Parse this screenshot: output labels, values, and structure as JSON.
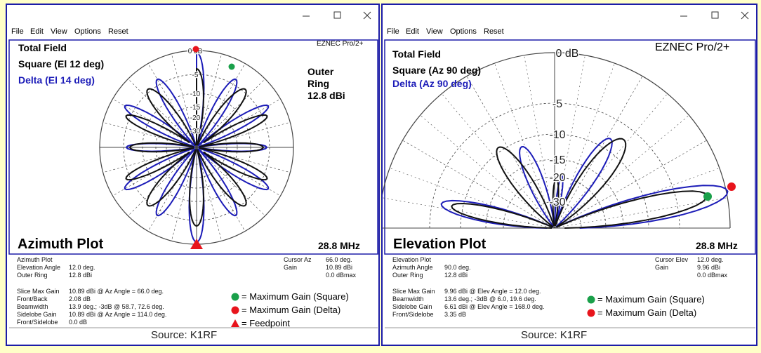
{
  "windows": [
    {
      "menu": [
        "File",
        "Edit",
        "View",
        "Options",
        "Reset"
      ],
      "program": "EZNEC Pro/2+",
      "legend": [
        "Total Field",
        "Square (El 12 deg)",
        "Delta (El 14 deg)"
      ],
      "ring_note": [
        "Outer",
        "Ring",
        "12.8 dBi"
      ],
      "ring_labels": [
        "0 dB",
        "-5",
        "-10",
        "-15",
        "-20",
        "-30"
      ],
      "plot_title": "Azimuth Plot",
      "frequency": "28.8 MHz",
      "info_title": "Azimuth Plot",
      "info_rows": [
        {
          "label": "Elevation Angle",
          "value": "12.0 deg."
        },
        {
          "label": "Outer Ring",
          "value": "12.8 dBi"
        }
      ],
      "cursor_rows": [
        {
          "label": "Cursor Az",
          "value": "66.0 deg."
        },
        {
          "label": "Gain",
          "value": "10.89 dBi"
        }
      ],
      "cursor_extra": "0.0 dBmax",
      "stats": [
        {
          "label": "Slice Max Gain",
          "value": "10.89 dBi @ Az Angle = 66.0 deg."
        },
        {
          "label": "Front/Back",
          "value": "2.08 dB"
        },
        {
          "label": "Beamwidth",
          "value": "13.9 deg.; -3dB @ 58.7, 72.6 deg."
        },
        {
          "label": "Sidelobe Gain",
          "value": "10.89 dBi @ Az Angle = 114.0 deg."
        },
        {
          "label": "Front/Sidelobe",
          "value": "0.0 dB"
        }
      ],
      "key": [
        "= Maximum Gain (Square)",
        "= Maximum Gain (Delta)",
        "= Feedpoint"
      ],
      "source": "Source: K1RF"
    },
    {
      "menu": [
        "File",
        "Edit",
        "View",
        "Options",
        "Reset"
      ],
      "program": "EZNEC Pro/2+",
      "legend": [
        "Total Field",
        "Square (Az 90 deg)",
        "Delta (Az 90 deg)"
      ],
      "ring_labels": [
        "0 dB",
        "-5",
        "-10",
        "-15",
        "-20",
        "-30"
      ],
      "plot_title": "Elevation Plot",
      "frequency": "28.8 MHz",
      "info_title": "Elevation Plot",
      "info_rows": [
        {
          "label": "Azimuth Angle",
          "value": "90.0 deg."
        },
        {
          "label": "Outer Ring",
          "value": "12.8 dBi"
        }
      ],
      "cursor_rows": [
        {
          "label": "Cursor Elev",
          "value": "12.0 deg."
        },
        {
          "label": "Gain",
          "value": "9.96 dBi"
        }
      ],
      "cursor_extra": "0.0 dBmax",
      "stats": [
        {
          "label": "Slice Max Gain",
          "value": "9.96 dBi @ Elev Angle = 12.0 deg."
        },
        {
          "label": "Beamwidth",
          "value": "13.6 deg.; -3dB @ 6.0, 19.6 deg."
        },
        {
          "label": "Sidelobe Gain",
          "value": "6.61 dBi @ Elev Angle = 168.0 deg."
        },
        {
          "label": "Front/Sidelobe",
          "value": "3.35 dB"
        }
      ],
      "key": [
        "= Maximum Gain (Square)",
        "= Maximum Gain (Delta)"
      ],
      "source": "Source: K1RF"
    }
  ]
}
